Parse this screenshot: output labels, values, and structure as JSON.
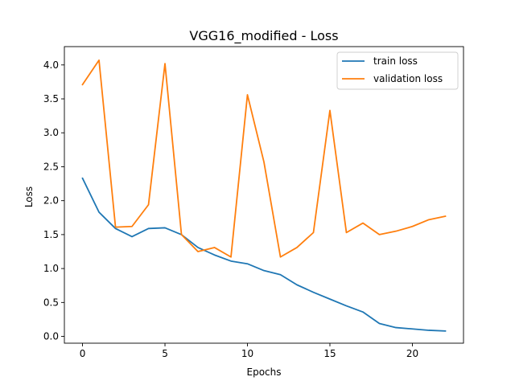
{
  "chart_data": {
    "type": "line",
    "title": "VGG16_modified - Loss",
    "xlabel": "Epochs",
    "ylabel": "Loss",
    "x": [
      0,
      1,
      2,
      3,
      4,
      5,
      6,
      7,
      8,
      9,
      10,
      11,
      12,
      13,
      14,
      15,
      16,
      17,
      18,
      19,
      20,
      21,
      22
    ],
    "xlim": [
      -1.1,
      23.1
    ],
    "ylim": [
      -0.1,
      4.27
    ],
    "xticks": [
      0,
      5,
      10,
      15,
      20
    ],
    "yticks": [
      0.0,
      0.5,
      1.0,
      1.5,
      2.0,
      2.5,
      3.0,
      3.5,
      4.0
    ],
    "xtick_labels": [
      "0",
      "5",
      "10",
      "15",
      "20"
    ],
    "ytick_labels": [
      "0.0",
      "0.5",
      "1.0",
      "1.5",
      "2.0",
      "2.5",
      "3.0",
      "3.5",
      "4.0"
    ],
    "grid": false,
    "legend_position": "top-right",
    "series": [
      {
        "name": "train loss",
        "color": "#1f77b4",
        "values": [
          2.33,
          1.83,
          1.59,
          1.47,
          1.59,
          1.6,
          1.5,
          1.31,
          1.2,
          1.11,
          1.07,
          0.97,
          0.91,
          0.76,
          0.65,
          0.55,
          0.45,
          0.36,
          0.19,
          0.13,
          0.11,
          0.09,
          0.08
        ]
      },
      {
        "name": "validation loss",
        "color": "#ff7f0e",
        "values": [
          3.71,
          4.07,
          1.61,
          1.62,
          1.94,
          4.02,
          1.5,
          1.25,
          1.31,
          1.17,
          3.56,
          2.57,
          1.17,
          1.31,
          1.53,
          3.33,
          1.53,
          1.67,
          1.5,
          1.55,
          1.62,
          1.72,
          1.77
        ]
      }
    ]
  }
}
